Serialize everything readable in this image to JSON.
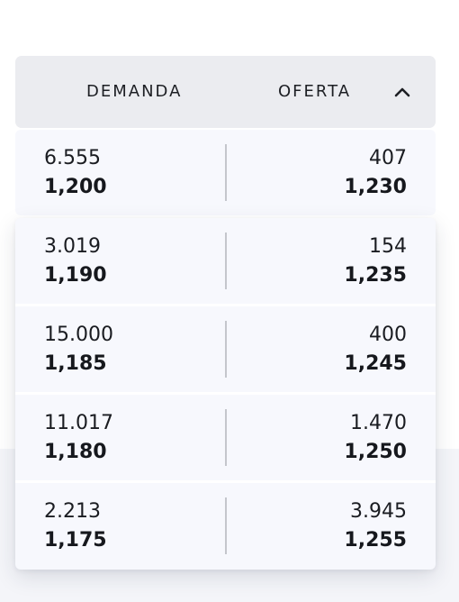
{
  "header": {
    "demand_label": "DEMANDA",
    "offer_label": "OFERTA",
    "toggle_icon": "chevron-up-icon"
  },
  "rows": [
    {
      "bid_qty": "6.555",
      "bid_price": "1,200",
      "ask_qty": "407",
      "ask_price": "1,230"
    },
    {
      "bid_qty": "3.019",
      "bid_price": "1,190",
      "ask_qty": "154",
      "ask_price": "1,235"
    },
    {
      "bid_qty": "15.000",
      "bid_price": "1,185",
      "ask_qty": "400",
      "ask_price": "1,245"
    },
    {
      "bid_qty": "11.017",
      "bid_price": "1,180",
      "ask_qty": "1.470",
      "ask_price": "1,250"
    },
    {
      "bid_qty": "2.213",
      "bid_price": "1,175",
      "ask_qty": "3.945",
      "ask_price": "1,255"
    }
  ]
}
